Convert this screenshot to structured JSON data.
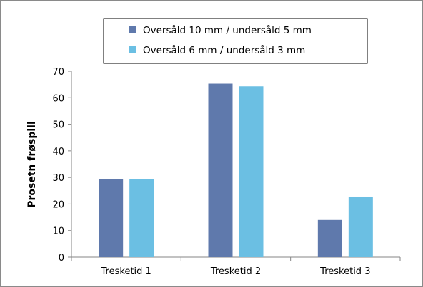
{
  "chart_data": {
    "type": "bar",
    "title": "",
    "xlabel": "",
    "ylabel": "Prosetn frøspill",
    "ylim": [
      0,
      70
    ],
    "yticks": [
      0,
      10,
      20,
      30,
      40,
      50,
      60,
      70
    ],
    "categories": [
      "Tresketid 1",
      "Tresketid 2",
      "Tresketid 3"
    ],
    "series": [
      {
        "name": "Oversåld 10 mm / undersåld 5 mm",
        "color": "#5f79ac",
        "values": [
          29.3,
          65.3,
          14.0
        ]
      },
      {
        "name": "Oversåld 6 mm / undersåld 3 mm",
        "color": "#6bbfe3",
        "values": [
          29.3,
          64.3,
          22.8
        ]
      }
    ],
    "grid": false,
    "legend_position": "top"
  }
}
